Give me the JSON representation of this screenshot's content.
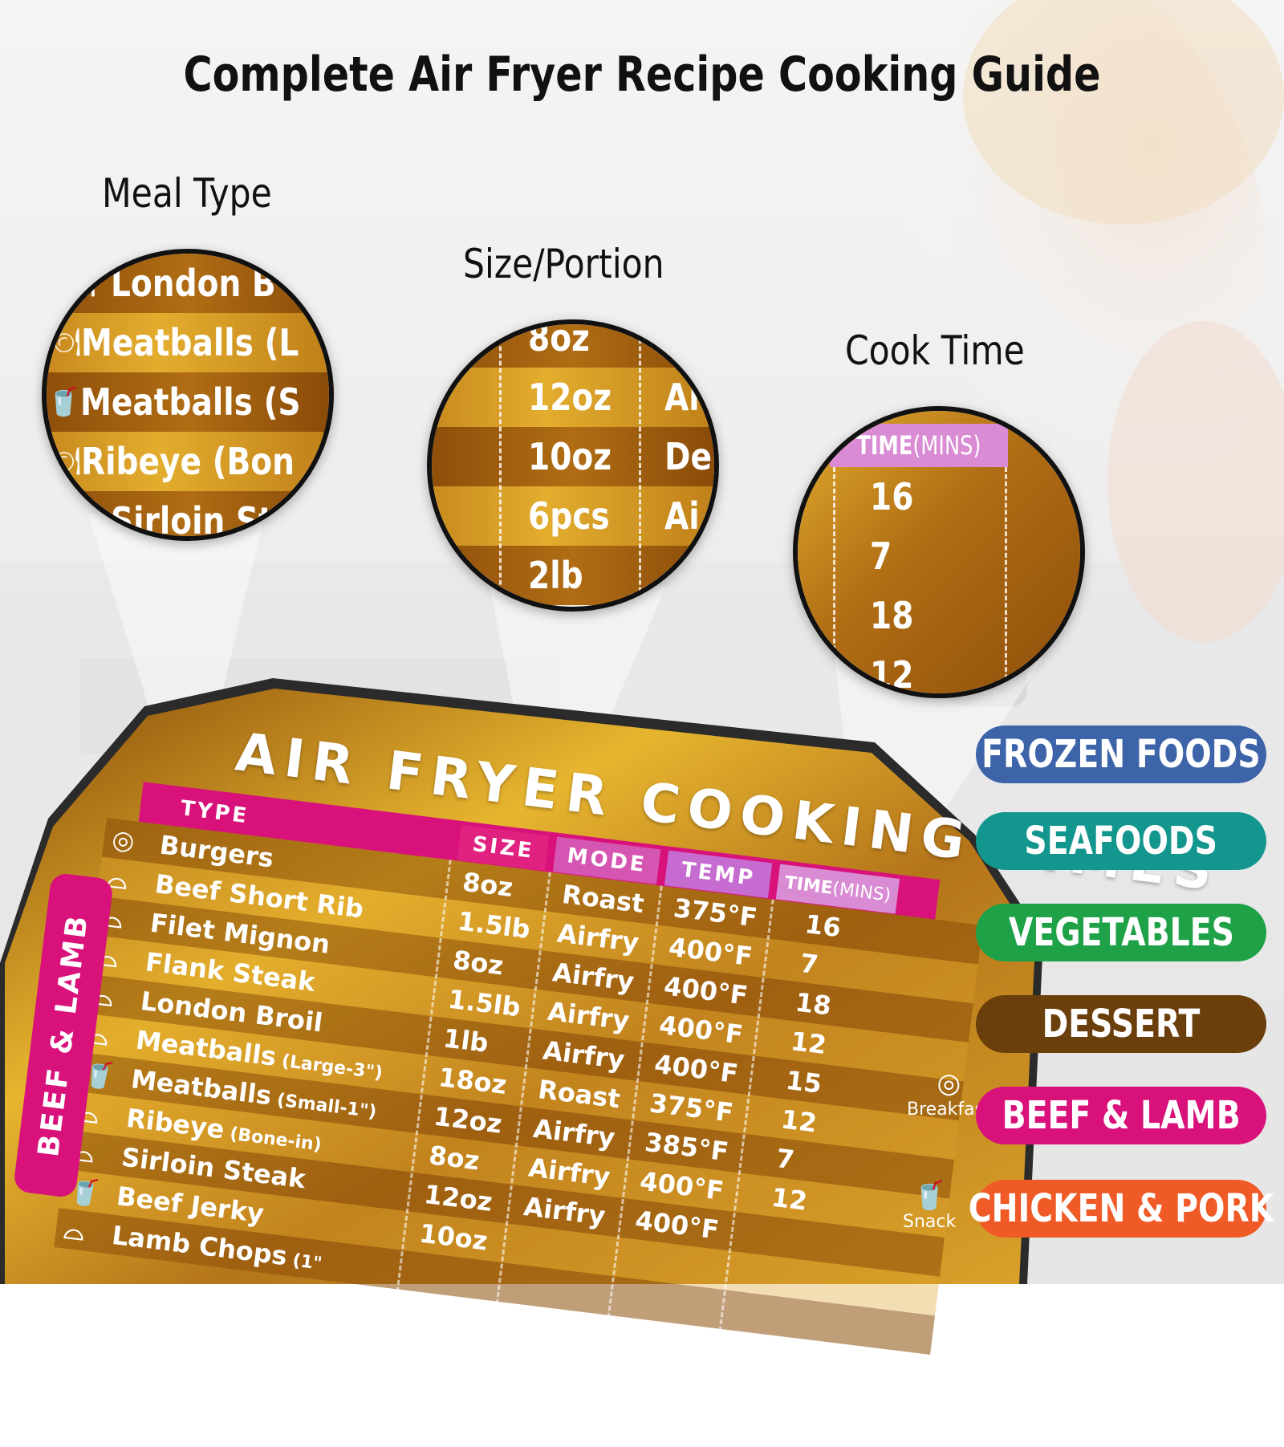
{
  "title": "Complete Air Fryer Recipe Cooking Guide",
  "labels": {
    "meal_type": "Meal Type",
    "size_portion": "Size/Portion",
    "cook_time": "Cook Time"
  },
  "lens_meal": [
    {
      "icon": "cloche-icon",
      "text": "London B"
    },
    {
      "icon": "cloche-icon",
      "text": "Meatballs (L"
    },
    {
      "icon": "cup-icon",
      "text": "Meatballs (S"
    },
    {
      "icon": "cloche-icon",
      "text": "Ribeye (Bon"
    },
    {
      "icon": "cloche-icon",
      "text": "Sirloin St"
    }
  ],
  "lens_size": [
    {
      "size": "8oz",
      "mode": ""
    },
    {
      "size": "12oz",
      "mode": "Ai"
    },
    {
      "size": "10oz",
      "mode": "De"
    },
    {
      "size": "6pcs",
      "mode": "Ai"
    },
    {
      "size": "2lb",
      "mode": ""
    }
  ],
  "lens_time": {
    "header": "TIME",
    "header_unit": "(MINS)",
    "values": [
      "16",
      "7",
      "18",
      "12"
    ]
  },
  "card": {
    "title": "AIR FRYER COOKING TIMES",
    "side_tab": "BEEF & LAMB",
    "headers": {
      "type": "TYPE",
      "size": "SIZE",
      "mode": "MODE",
      "temp": "TEMP",
      "time": "TIME",
      "time_unit": "(MINS)"
    },
    "rows": [
      {
        "type": "Burgers",
        "note": "",
        "size": "8oz",
        "mode": "Roast",
        "temp": "375°F",
        "time": "16",
        "icon": "egg-icon"
      },
      {
        "type": "Beef Short Rib",
        "note": "",
        "size": "1.5lb",
        "mode": "Airfry",
        "temp": "400°F",
        "time": "7",
        "icon": "cloche-icon"
      },
      {
        "type": "Filet Mignon",
        "note": "",
        "size": "8oz",
        "mode": "Airfry",
        "temp": "400°F",
        "time": "18",
        "icon": "cloche-icon"
      },
      {
        "type": "Flank Steak",
        "note": "",
        "size": "1.5lb",
        "mode": "Airfry",
        "temp": "400°F",
        "time": "12",
        "icon": "cloche-icon"
      },
      {
        "type": "London Broil",
        "note": "",
        "size": "1lb",
        "mode": "Airfry",
        "temp": "400°F",
        "time": "15",
        "icon": "cloche-icon"
      },
      {
        "type": "Meatballs",
        "note": "(Large-3\")",
        "size": "18oz",
        "mode": "Roast",
        "temp": "375°F",
        "time": "12",
        "icon": "cloche-icon"
      },
      {
        "type": "Meatballs",
        "note": "(Small-1\")",
        "size": "12oz",
        "mode": "Airfry",
        "temp": "385°F",
        "time": "7",
        "icon": "cup-icon"
      },
      {
        "type": "Ribeye",
        "note": "(Bone-in)",
        "size": "8oz",
        "mode": "Airfry",
        "temp": "400°F",
        "time": "12",
        "icon": "cloche-icon"
      },
      {
        "type": "Sirloin Steak",
        "note": "",
        "size": "12oz",
        "mode": "Airfry",
        "temp": "400°F",
        "time": "",
        "icon": "cloche-icon"
      },
      {
        "type": "Beef Jerky",
        "note": "",
        "size": "10oz",
        "mode": "",
        "temp": "",
        "time": "",
        "icon": "cup-icon"
      },
      {
        "type": "Lamb Chops",
        "note": "(1\"",
        "size": "",
        "mode": "",
        "temp": "",
        "time": "",
        "icon": "cloche-icon"
      }
    ],
    "side_icons": [
      {
        "icon": "egg-icon",
        "label": "Breakfast"
      },
      {
        "icon": "cup-icon",
        "label": "Snack"
      }
    ]
  },
  "categories": [
    {
      "label": "FROZEN FOODS",
      "color": "#3d64a8"
    },
    {
      "label": "SEAFOODS",
      "color": "#12968e"
    },
    {
      "label": "VEGETABLES",
      "color": "#1ea147"
    },
    {
      "label": "DESSERT",
      "color": "#6b3f0c"
    },
    {
      "label": "BEEF & LAMB",
      "color": "#d8127a"
    },
    {
      "label": "CHICKEN & PORK",
      "color": "#f05a26"
    }
  ]
}
